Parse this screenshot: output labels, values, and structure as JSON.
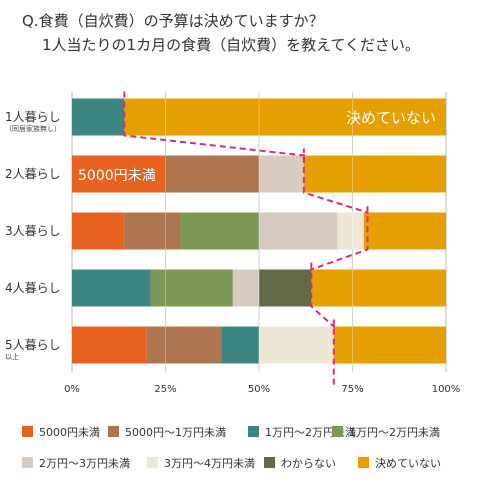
{
  "title": {
    "line1": "Q.食費（自炊費）の予算は決めていますか？",
    "line2": "1人当たりの1カ月の食費（自炊費）を教えてください。"
  },
  "colors": {
    "lt5000": "#e8621f",
    "5000to10000": "#ad7550",
    "10000s": "#3c8582",
    "20000s": "#7c9855",
    "30000s": "#d7cbc1",
    "40000s": "#eee7d6",
    "unknown": "#636a47",
    "undecided": "#e5a000",
    "dash": "#e0287a"
  },
  "chart_data": {
    "type": "bar",
    "orientation": "horizontal",
    "stacked": true,
    "categories": [
      {
        "label": "1人暮らし",
        "sub": "（同居家族無し）"
      },
      {
        "label": "2人暮らし",
        "sub": ""
      },
      {
        "label": "3人暮らし",
        "sub": ""
      },
      {
        "label": "4人暮らし",
        "sub": ""
      },
      {
        "label": "5人暮らし",
        "sub": "以上"
      }
    ],
    "xlim": [
      0,
      100
    ],
    "x_ticks": [
      "0%",
      "25%",
      "50%",
      "75%",
      "100%"
    ],
    "series": [
      {
        "key": "lt5000",
        "name": "5000円未満",
        "values": [
          0,
          25,
          14,
          0,
          20
        ]
      },
      {
        "key": "5000to10000",
        "name": "5000円〜1万円未満",
        "values": [
          0,
          25,
          15,
          0,
          20
        ]
      },
      {
        "key": "10000s",
        "name": "1万円〜2万円未満",
        "values": [
          14,
          0,
          0,
          21,
          10
        ]
      },
      {
        "key": "20000s",
        "name": "1万円〜2万円未満",
        "values": [
          0,
          0,
          21,
          22,
          0
        ]
      },
      {
        "key": "30000s",
        "name": "2万円〜3万円未満",
        "values": [
          0,
          12,
          21,
          7,
          0
        ]
      },
      {
        "key": "40000s",
        "name": "3万円〜4万円未満",
        "values": [
          0,
          0,
          7,
          0,
          20
        ]
      },
      {
        "key": "unknown",
        "name": "わからない",
        "values": [
          0,
          0,
          0,
          14,
          0
        ]
      },
      {
        "key": "undecided",
        "name": "決めていない",
        "values": [
          86,
          38,
          22,
          36,
          30
        ]
      }
    ],
    "annotations": [
      {
        "text": "決めていない",
        "row": 0,
        "series": "undecided"
      },
      {
        "text": "5000円未満",
        "row": 1,
        "series": "lt5000"
      }
    ],
    "dashed_boundary": [
      14,
      62,
      79,
      64,
      70
    ],
    "grid": true,
    "legend": "bottom"
  }
}
